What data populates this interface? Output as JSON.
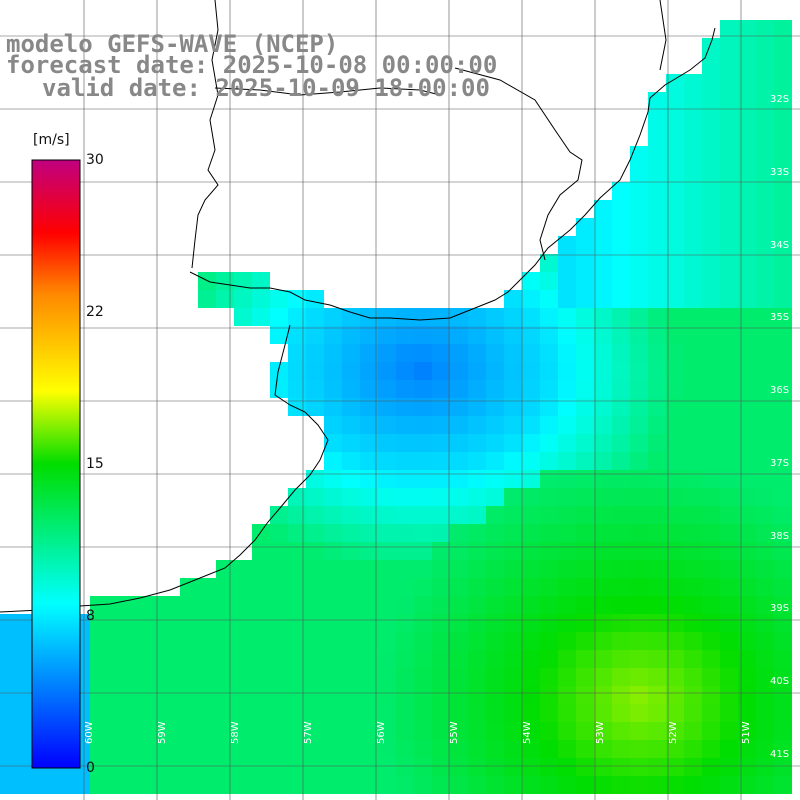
{
  "title": {
    "line1": "modelo GEFS-WAVE (NCEP)",
    "line2": "forecast date: 2025-10-08 00:00:00",
    "line3": "valid date: 2025-10-09 18:00:00"
  },
  "colorbar": {
    "unit": "[m/s]",
    "ticks": [
      "30",
      "22",
      "15",
      "8",
      "0"
    ],
    "range": [
      0,
      30
    ],
    "colors": [
      "#0000ff",
      "#00ffff",
      "#00dd00",
      "#ffff00",
      "#ff0000",
      "#c00080"
    ]
  },
  "lat_labels": [
    "32S",
    "33S",
    "34S",
    "35S",
    "36S",
    "37S",
    "38S",
    "39S",
    "40S",
    "41S"
  ],
  "lon_labels": [
    "60W",
    "59W",
    "58W",
    "57W",
    "56W",
    "55W",
    "54W",
    "53W",
    "52W",
    "51W"
  ],
  "field": {
    "variable": "wind speed",
    "calm_zone_speed": 4,
    "coastal_zone_speed": 7,
    "offshore_speed": 12,
    "southeast_max_speed": 17
  }
}
